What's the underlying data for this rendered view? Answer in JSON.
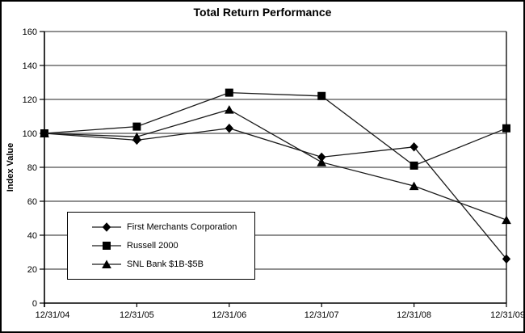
{
  "chart_data": {
    "type": "line",
    "title": "Total Return Performance",
    "xlabel": "",
    "ylabel": "Index Value",
    "categories": [
      "12/31/04",
      "12/31/05",
      "12/31/06",
      "12/31/07",
      "12/31/08",
      "12/31/09"
    ],
    "yticks": [
      0,
      20,
      40,
      60,
      80,
      100,
      120,
      140,
      160
    ],
    "ylim": [
      0,
      160
    ],
    "grid": true,
    "legend_position": "inside-bottom-left",
    "series": [
      {
        "name": "First Merchants Corporation",
        "marker": "diamond",
        "values": [
          100,
          96,
          103,
          86,
          92,
          26
        ]
      },
      {
        "name": "Russell 2000",
        "marker": "square",
        "values": [
          100,
          104,
          124,
          122,
          81,
          103
        ]
      },
      {
        "name": "SNL Bank $1B-$5B",
        "marker": "triangle",
        "values": [
          100,
          98,
          114,
          83,
          69,
          49
        ]
      }
    ],
    "colors": {
      "line": "#1a1a1a",
      "marker": "#000000",
      "grid": "#808080",
      "axis": "#000000",
      "background": "#ffffff",
      "text": "#000000"
    }
  }
}
